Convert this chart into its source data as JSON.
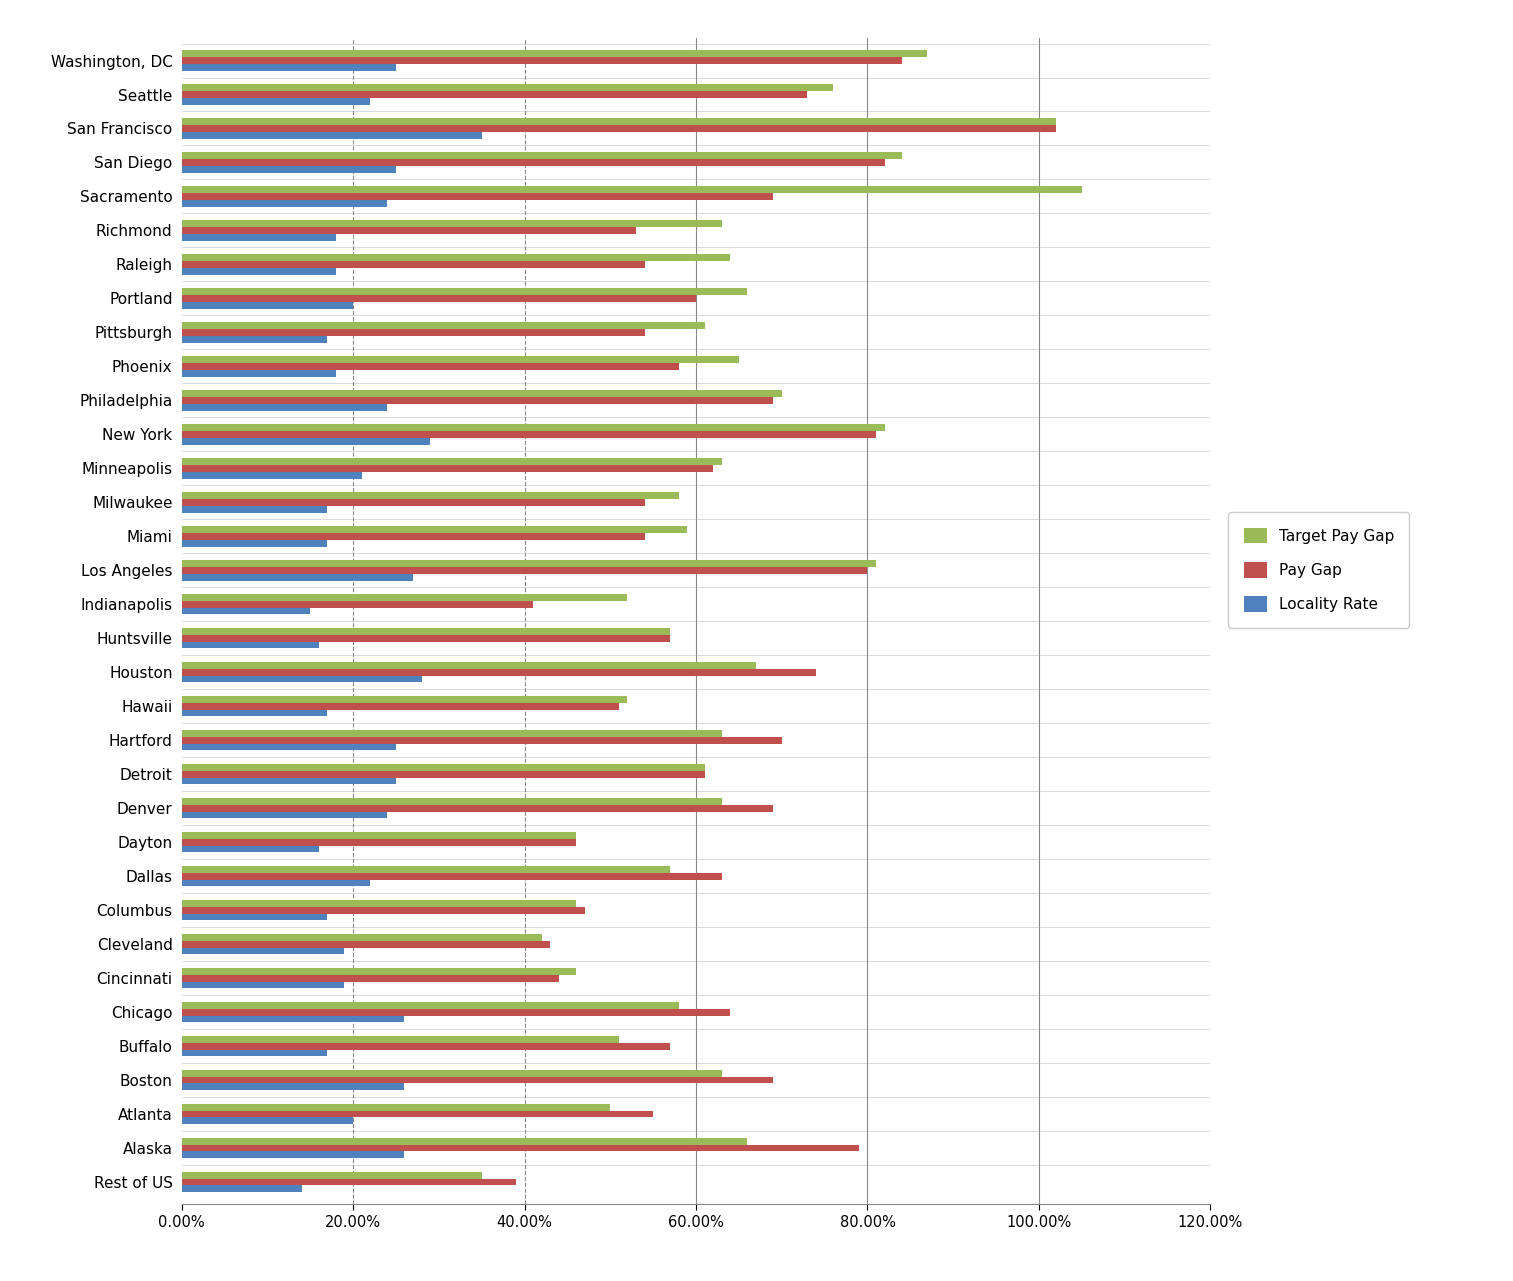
{
  "cities": [
    "Washington, DC",
    "Seattle",
    "San Francisco",
    "San Diego",
    "Sacramento",
    "Richmond",
    "Raleigh",
    "Portland",
    "Pittsburgh",
    "Phoenix",
    "Philadelphia",
    "New York",
    "Minneapolis",
    "Milwaukee",
    "Miami",
    "Los Angeles",
    "Indianapolis",
    "Huntsville",
    "Houston",
    "Hawaii",
    "Hartford",
    "Detroit",
    "Denver",
    "Dayton",
    "Dallas",
    "Columbus",
    "Cleveland",
    "Cincinnati",
    "Chicago",
    "Buffalo",
    "Boston",
    "Atlanta",
    "Alaska",
    "Rest of US"
  ],
  "target_pay_gap": [
    0.87,
    0.76,
    1.02,
    0.84,
    1.05,
    0.63,
    0.64,
    0.66,
    0.61,
    0.65,
    0.7,
    0.82,
    0.63,
    0.58,
    0.59,
    0.81,
    0.52,
    0.57,
    0.67,
    0.52,
    0.63,
    0.61,
    0.63,
    0.46,
    0.57,
    0.46,
    0.42,
    0.46,
    0.58,
    0.51,
    0.63,
    0.5,
    0.66,
    0.35
  ],
  "pay_gap": [
    0.84,
    0.73,
    1.02,
    0.82,
    0.69,
    0.53,
    0.54,
    0.6,
    0.54,
    0.58,
    0.69,
    0.81,
    0.62,
    0.54,
    0.54,
    0.8,
    0.41,
    0.57,
    0.74,
    0.51,
    0.7,
    0.61,
    0.69,
    0.46,
    0.63,
    0.47,
    0.43,
    0.44,
    0.64,
    0.57,
    0.69,
    0.55,
    0.79,
    0.39
  ],
  "locality_rate": [
    0.25,
    0.22,
    0.35,
    0.25,
    0.24,
    0.18,
    0.18,
    0.2,
    0.17,
    0.18,
    0.24,
    0.29,
    0.21,
    0.17,
    0.17,
    0.27,
    0.15,
    0.16,
    0.28,
    0.17,
    0.25,
    0.25,
    0.24,
    0.16,
    0.22,
    0.17,
    0.19,
    0.19,
    0.26,
    0.17,
    0.26,
    0.2,
    0.26,
    0.14
  ],
  "color_target": "#9BBB59",
  "color_pay_gap": "#C0504D",
  "color_locality": "#4F81BD",
  "xlim_max": 1.2,
  "xticks": [
    0.0,
    0.2,
    0.4,
    0.6,
    0.8,
    1.0,
    1.2
  ],
  "xticklabels": [
    "0.00%",
    "20.00%",
    "40.00%",
    "60.00%",
    "80.00%",
    "100.00%",
    "120.00%"
  ],
  "legend_labels": [
    "Target Pay Gap",
    "Pay Gap",
    "Locality Rate"
  ],
  "dashed_gridlines": [
    0.2,
    0.4
  ],
  "solid_gridlines": [
    0.6,
    0.8,
    1.0
  ]
}
